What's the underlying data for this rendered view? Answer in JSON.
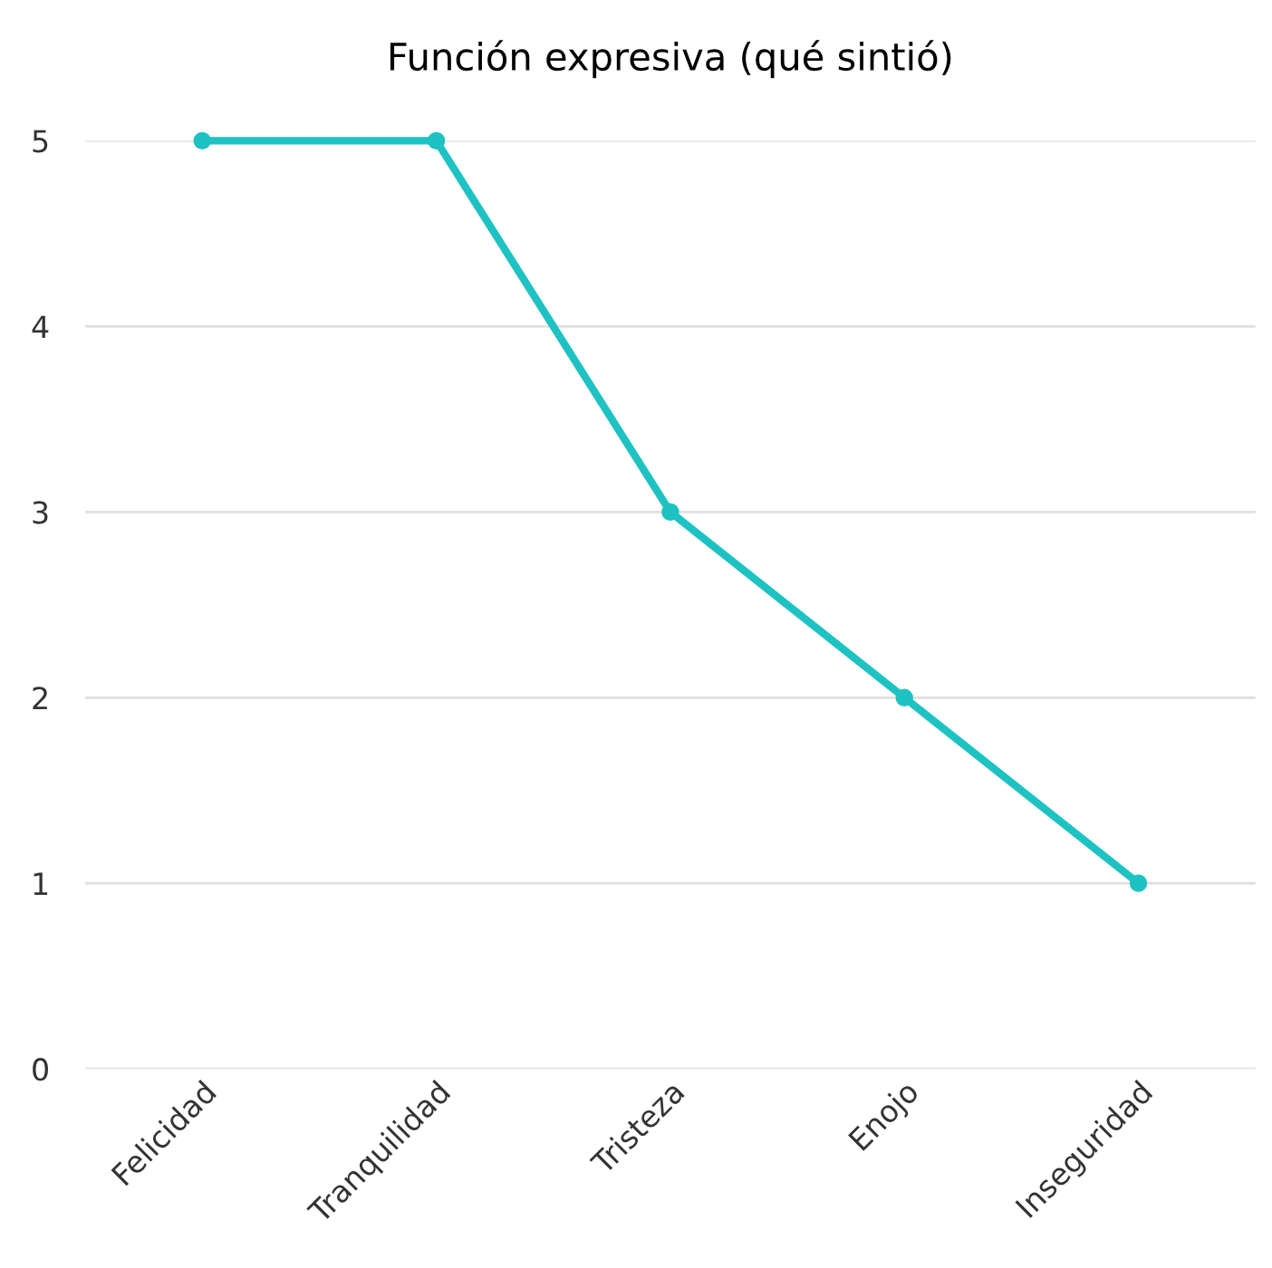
{
  "chart_data": {
    "type": "line",
    "title": "Función expresiva (qué sintió)",
    "categories": [
      "Felicidad",
      "Tranquilidad",
      "Tristeza",
      "Enojo",
      "Inseguridad"
    ],
    "series": [
      {
        "color": "#1fc2c2",
        "values": [
          5,
          5,
          3,
          2,
          1
        ]
      }
    ],
    "ylim": [
      0,
      5
    ],
    "yticks": [
      0,
      1,
      2,
      3,
      4,
      5
    ],
    "grid": "y",
    "marker": "circle",
    "line_style": "solid"
  }
}
